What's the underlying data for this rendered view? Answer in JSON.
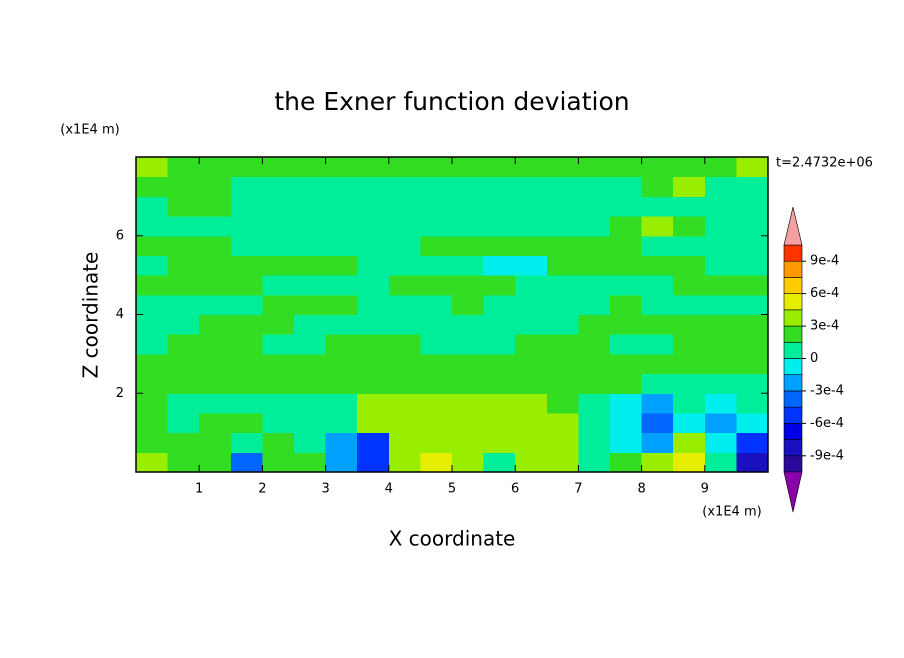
{
  "chart_data": {
    "type": "contour",
    "title": "the Exner function deviation",
    "x_label": "X coordinate",
    "y_label": "Z coordinate",
    "x_unit": "(x1E4 m)",
    "y_unit": "(x1E4 m)",
    "time_label": "t=2.4732e+06",
    "xlim": [
      0,
      10
    ],
    "ylim": [
      0,
      8
    ],
    "xticks": [
      1,
      2,
      3,
      4,
      5,
      6,
      7,
      8,
      9
    ],
    "yticks": [
      2,
      4,
      6
    ],
    "x": [
      0.25,
      0.75,
      1.25,
      1.75,
      2.25,
      2.75,
      3.25,
      3.75,
      4.25,
      4.75,
      5.25,
      5.75,
      6.25,
      6.75,
      7.25,
      7.75,
      8.25,
      8.75,
      9.25,
      9.75
    ],
    "y": [
      0.25,
      0.75,
      1.25,
      1.75,
      2.25,
      2.75,
      3.25,
      3.75,
      4.25,
      4.75,
      5.25,
      5.75,
      6.25,
      6.75,
      7.25,
      7.75
    ],
    "z": [
      [
        0.00035,
        0.0002,
        0.0002,
        -0.0004,
        0.0002,
        0.0002,
        -0.0002,
        -0.0006,
        0.00035,
        0.0005,
        0.00035,
        5e-05,
        0.00035,
        0.00035,
        5e-05,
        0.0002,
        0.00035,
        0.0005,
        5e-05,
        -0.0008
      ],
      [
        0.0002,
        0.0002,
        0.0002,
        5e-05,
        0.0002,
        5e-05,
        -0.0002,
        -0.0006,
        0.00035,
        0.00035,
        0.00035,
        0.00035,
        0.00035,
        0.00035,
        5e-05,
        -0.0001,
        -0.0002,
        0.00035,
        -0.0001,
        -0.0006
      ],
      [
        0.0002,
        5e-05,
        0.0002,
        0.0002,
        5e-05,
        5e-05,
        5e-05,
        0.00035,
        0.00035,
        0.00035,
        0.00035,
        0.00035,
        0.00035,
        0.00035,
        5e-05,
        -0.0001,
        -0.0004,
        -0.0001,
        -0.0002,
        -0.0001
      ],
      [
        0.0002,
        5e-05,
        5e-05,
        5e-05,
        5e-05,
        5e-05,
        5e-05,
        0.00035,
        0.00035,
        0.00035,
        0.00035,
        0.00035,
        0.00035,
        0.0002,
        5e-05,
        -0.0001,
        -0.0002,
        5e-05,
        -0.0001,
        5e-05
      ],
      [
        0.0002,
        0.0002,
        0.0002,
        0.0002,
        0.0002,
        0.0002,
        0.0002,
        0.0002,
        0.0002,
        0.0002,
        0.0002,
        0.0002,
        0.0002,
        0.0002,
        0.0002,
        0.0002,
        5e-05,
        5e-05,
        5e-05,
        5e-05
      ],
      [
        0.0002,
        0.0002,
        0.0002,
        0.0002,
        0.0002,
        0.0002,
        0.0002,
        0.0002,
        0.0002,
        0.0002,
        0.0002,
        0.0002,
        0.0002,
        0.0002,
        0.0002,
        0.0002,
        0.0002,
        0.0002,
        0.0002,
        0.0002
      ],
      [
        5e-05,
        0.0002,
        0.0002,
        0.0002,
        5e-05,
        5e-05,
        0.0002,
        0.0002,
        0.0002,
        5e-05,
        5e-05,
        5e-05,
        0.0002,
        0.0002,
        0.0002,
        5e-05,
        5e-05,
        0.0002,
        0.0002,
        0.0002
      ],
      [
        5e-05,
        5e-05,
        0.0002,
        0.0002,
        0.0002,
        5e-05,
        5e-05,
        5e-05,
        5e-05,
        5e-05,
        5e-05,
        5e-05,
        5e-05,
        5e-05,
        0.0002,
        0.0002,
        0.0002,
        0.0002,
        0.0002,
        0.0002
      ],
      [
        5e-05,
        5e-05,
        5e-05,
        5e-05,
        0.0002,
        0.0002,
        0.0002,
        5e-05,
        5e-05,
        5e-05,
        0.0002,
        5e-05,
        5e-05,
        5e-05,
        5e-05,
        0.0002,
        5e-05,
        5e-05,
        5e-05,
        5e-05
      ],
      [
        0.0002,
        0.0002,
        0.0002,
        0.0002,
        5e-05,
        5e-05,
        5e-05,
        5e-05,
        0.0002,
        0.0002,
        0.0002,
        0.0002,
        5e-05,
        5e-05,
        5e-05,
        5e-05,
        5e-05,
        0.0002,
        0.0002,
        0.0002
      ],
      [
        5e-05,
        0.0002,
        0.0002,
        0.0002,
        0.0002,
        0.0002,
        0.0002,
        5e-05,
        5e-05,
        5e-05,
        5e-05,
        -0.0001,
        -0.0001,
        0.0002,
        0.0002,
        0.0002,
        0.0002,
        0.0002,
        5e-05,
        5e-05
      ],
      [
        0.0002,
        0.0002,
        0.0002,
        5e-05,
        5e-05,
        5e-05,
        5e-05,
        5e-05,
        5e-05,
        0.0002,
        0.0002,
        0.0002,
        0.0002,
        0.0002,
        0.0002,
        0.0002,
        5e-05,
        5e-05,
        5e-05,
        5e-05
      ],
      [
        5e-05,
        5e-05,
        5e-05,
        5e-05,
        5e-05,
        5e-05,
        5e-05,
        5e-05,
        5e-05,
        5e-05,
        5e-05,
        5e-05,
        5e-05,
        5e-05,
        5e-05,
        0.0002,
        0.00035,
        0.0002,
        5e-05,
        5e-05
      ],
      [
        5e-05,
        0.0002,
        0.0002,
        5e-05,
        5e-05,
        5e-05,
        5e-05,
        5e-05,
        5e-05,
        5e-05,
        5e-05,
        5e-05,
        5e-05,
        5e-05,
        5e-05,
        5e-05,
        5e-05,
        5e-05,
        5e-05,
        5e-05
      ],
      [
        0.0002,
        0.0002,
        0.0002,
        5e-05,
        5e-05,
        5e-05,
        5e-05,
        5e-05,
        5e-05,
        5e-05,
        5e-05,
        5e-05,
        5e-05,
        5e-05,
        5e-05,
        5e-05,
        0.0002,
        0.00035,
        5e-05,
        5e-05
      ],
      [
        0.00035,
        0.0002,
        0.0002,
        0.0002,
        0.0002,
        0.0002,
        0.0002,
        0.0002,
        0.0002,
        0.0002,
        0.0002,
        0.0002,
        0.0002,
        0.0002,
        0.0002,
        0.0002,
        0.0002,
        0.0002,
        0.0002,
        0.00035
      ]
    ],
    "levels": [
      -0.00105,
      -0.0009,
      -0.00075,
      -0.0006,
      -0.00045,
      -0.0003,
      -0.00015,
      0,
      0.00015,
      0.0003,
      0.00045,
      0.0006,
      0.00075,
      0.0009,
      0.00105
    ],
    "colors": [
      "#2a0a9a",
      "#1a10c0",
      "#0000e6",
      "#0033ff",
      "#0066ff",
      "#00a0ff",
      "#00eeee",
      "#00ee99",
      "#33dd22",
      "#99ee00",
      "#e6ee00",
      "#ffcc00",
      "#ff9900",
      "#ff3300"
    ],
    "under_color": "#8a00aa",
    "over_color": "#f4a0a0",
    "colorbar_ticks": [
      {
        "value": 0.0009,
        "label": "9e-4"
      },
      {
        "value": 0.0006,
        "label": "6e-4"
      },
      {
        "value": 0.0003,
        "label": "3e-4"
      },
      0,
      {
        "value": -0.0003,
        "label": "-3e-4"
      },
      {
        "value": -0.0006,
        "label": "-6e-4"
      },
      {
        "value": -0.0009,
        "label": "-9e-4"
      }
    ]
  }
}
